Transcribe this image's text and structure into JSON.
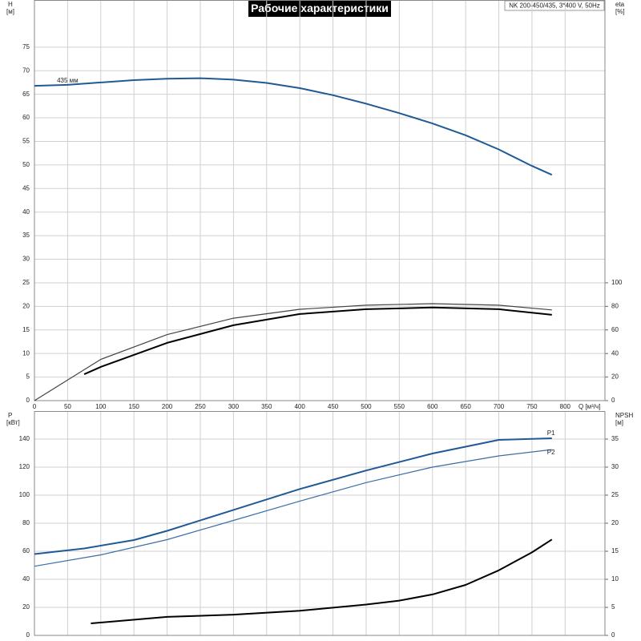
{
  "chart_data": [
    {
      "type": "line",
      "title": "Рабочие характеристики",
      "subtitle": "NK 200-450/435, 3*400 V, 50Hz",
      "x_label": "Q [м³/ч]",
      "y_label": "H",
      "y_unit": "[м]",
      "y2_label": "eta",
      "y2_unit": "[%]",
      "xlim": [
        0,
        860
      ],
      "xticks": [
        0,
        50,
        100,
        150,
        200,
        250,
        300,
        350,
        400,
        450,
        500,
        550,
        600,
        650,
        700,
        750,
        800
      ],
      "ylim": [
        0,
        85
      ],
      "yticks": [
        0,
        5,
        10,
        15,
        20,
        25,
        30,
        35,
        40,
        45,
        50,
        55,
        60,
        65,
        70,
        75
      ],
      "y2lim": [
        0,
        340
      ],
      "y2ticks": [
        0,
        20,
        40,
        60,
        80,
        100
      ],
      "grid": true,
      "series": [
        {
          "name": "435 мм",
          "color": "#1f5a96",
          "x": [
            0,
            50,
            100,
            150,
            200,
            250,
            300,
            350,
            400,
            450,
            500,
            550,
            600,
            650,
            700,
            750,
            780
          ],
          "values": [
            66.8,
            67,
            67.5,
            68,
            68.3,
            68.4,
            68.1,
            67.4,
            66.3,
            64.8,
            63,
            61,
            58.8,
            56.3,
            53.3,
            49.8,
            47.9
          ]
        },
        {
          "color": "#444444",
          "axis": "y2",
          "x": [
            0,
            100,
            200,
            300,
            400,
            500,
            600,
            700,
            780
          ],
          "values": [
            0,
            35,
            56,
            70,
            77.5,
            81,
            82.3,
            81,
            77
          ]
        },
        {
          "color": "#000000",
          "axis": "y2",
          "x": [
            75,
            100,
            200,
            300,
            400,
            500,
            600,
            700,
            780
          ],
          "values": [
            22.4,
            28.6,
            49,
            64,
            73.5,
            77.6,
            79,
            77.6,
            72.8
          ]
        }
      ]
    },
    {
      "type": "line",
      "y_label": "P",
      "y_unit": "[кВт]",
      "y2_label": "NPSH",
      "y2_unit": "[м]",
      "xlim": [
        0,
        860
      ],
      "ylim": [
        0,
        160
      ],
      "yticks": [
        0,
        20,
        40,
        60,
        80,
        100,
        120,
        140
      ],
      "y2lim": [
        0,
        40
      ],
      "y2ticks": [
        0,
        5,
        10,
        15,
        20,
        25,
        30,
        35
      ],
      "grid": true,
      "series": [
        {
          "name": "P1",
          "color": "#1f5a96",
          "x": [
            0,
            75,
            150,
            200,
            300,
            400,
            500,
            600,
            700,
            780
          ],
          "values": [
            58,
            62,
            68,
            74.6,
            89.5,
            104.4,
            117.6,
            129.7,
            139.4,
            140.6
          ]
        },
        {
          "name": "P2",
          "color": "#3a6ea5",
          "x": [
            0,
            100,
            200,
            300,
            400,
            500,
            600,
            700,
            780
          ],
          "values": [
            49.3,
            57.4,
            68.3,
            82,
            95.8,
            109,
            120,
            128,
            132.5
          ]
        },
        {
          "color": "#000000",
          "axis": "y2",
          "x": [
            85,
            200,
            300,
            400,
            500,
            550,
            600,
            650,
            700,
            750,
            780
          ],
          "values": [
            2.15,
            3.3,
            3.7,
            4.4,
            5.5,
            6.2,
            7.3,
            9.0,
            11.6,
            14.8,
            17.1
          ]
        }
      ]
    }
  ]
}
